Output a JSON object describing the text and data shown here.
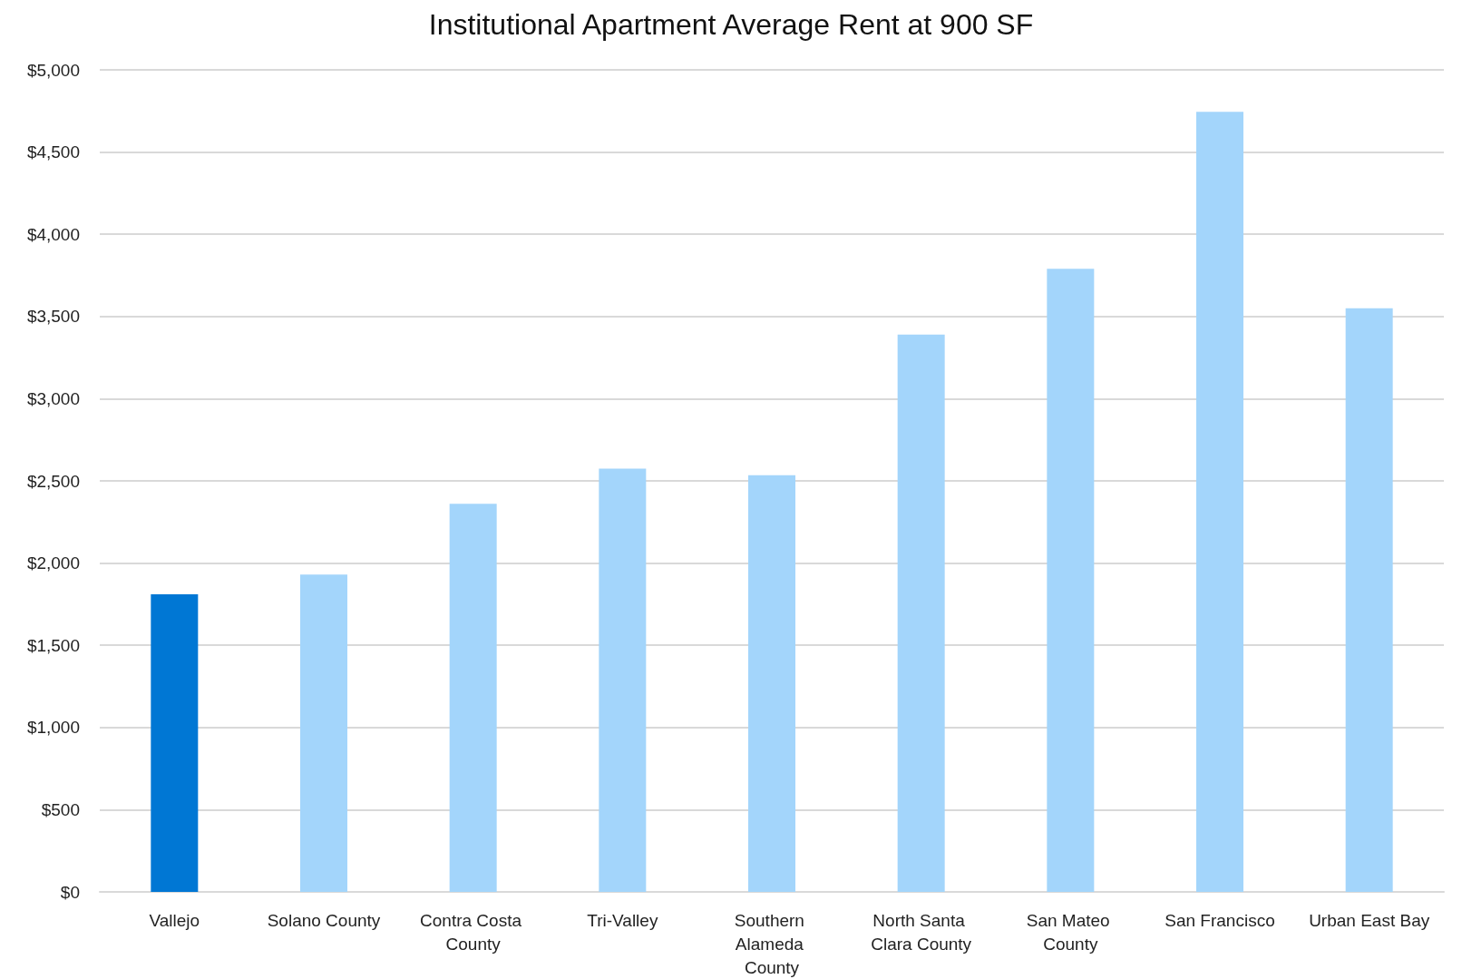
{
  "chart_data": {
    "type": "bar",
    "title": "Institutional Apartment Average Rent at 900 SF",
    "categories": [
      "Vallejo",
      "Solano County",
      "Contra Costa County",
      "Tri-Valley",
      "Southern Alameda County",
      "North Santa Clara County",
      "San Mateo County",
      "San Francisco",
      "Urban East Bay"
    ],
    "values": [
      1810,
      1930,
      2360,
      2575,
      2535,
      3390,
      3790,
      4745,
      3550
    ],
    "colors": [
      "#0077d4",
      "#a3d5fb",
      "#a3d5fb",
      "#a3d5fb",
      "#a3d5fb",
      "#a3d5fb",
      "#a3d5fb",
      "#a3d5fb",
      "#a3d5fb"
    ],
    "ylim": [
      0,
      5000
    ],
    "yticks": [
      {
        "value": 0,
        "label": "$0"
      },
      {
        "value": 500,
        "label": "$500"
      },
      {
        "value": 1000,
        "label": "$1,000"
      },
      {
        "value": 1500,
        "label": "$1,500"
      },
      {
        "value": 2000,
        "label": "$2,000"
      },
      {
        "value": 2500,
        "label": "$2,500"
      },
      {
        "value": 3000,
        "label": "$3,000"
      },
      {
        "value": 3500,
        "label": "$3,500"
      },
      {
        "value": 4000,
        "label": "$4,000"
      },
      {
        "value": 4500,
        "label": "$4,500"
      },
      {
        "value": 5000,
        "label": "$5,000"
      }
    ],
    "grid": "y"
  }
}
